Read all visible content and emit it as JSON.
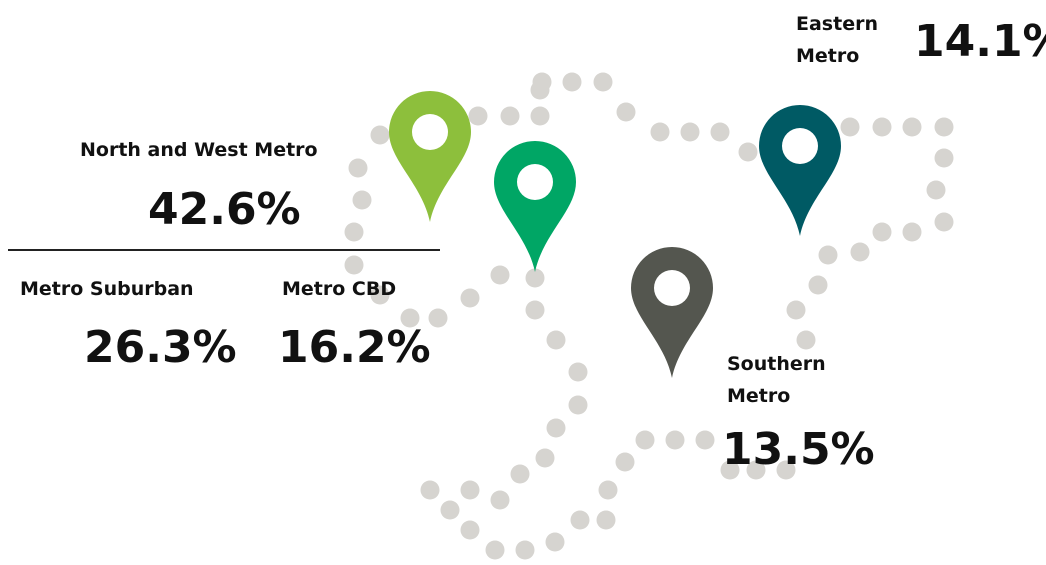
{
  "regions": [
    {
      "name": "North and West Metro",
      "value": "42.6%"
    },
    {
      "name": "Metro Suburban",
      "value": "26.3%"
    },
    {
      "name": "Metro CBD",
      "value": "16.2%"
    },
    {
      "name_lines": [
        "Eastern",
        "Metro"
      ],
      "value": "14.1%"
    },
    {
      "name_lines": [
        "Southern",
        "Metro"
      ],
      "value": "13.5%"
    }
  ]
}
